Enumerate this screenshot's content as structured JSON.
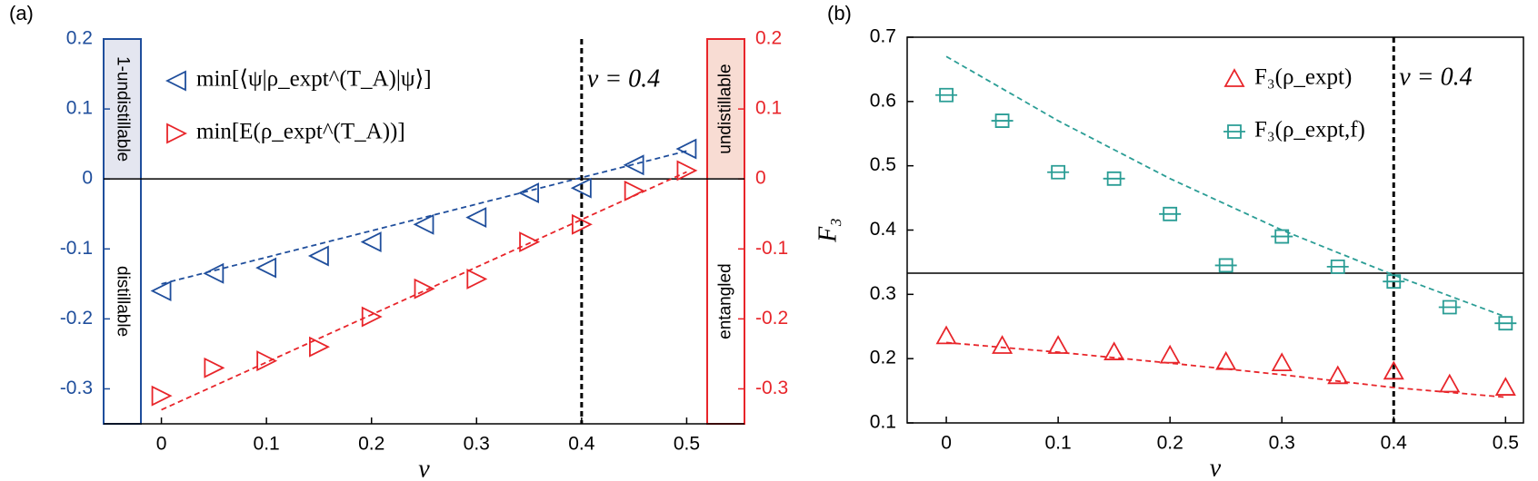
{
  "chart_data": [
    {
      "type": "scatter",
      "panel_label": "(a)",
      "x_label": "v",
      "xlim": [
        -0.055,
        0.555
      ],
      "xticks": [
        0,
        0.1,
        0.2,
        0.3,
        0.4,
        0.5
      ],
      "ylim": [
        -0.35,
        0.2
      ],
      "yticks": [
        -0.3,
        -0.2,
        -0.1,
        0,
        0.1,
        0.2
      ],
      "y_color": "#1f4e9c",
      "y2lim": [
        -0.35,
        0.2
      ],
      "y2ticks": [
        -0.3,
        -0.2,
        -0.1,
        0,
        0.1,
        0.2
      ],
      "y2_color": "#e8252a",
      "x": [
        0,
        0.05,
        0.1,
        0.15,
        0.2,
        0.25,
        0.3,
        0.35,
        0.4,
        0.45,
        0.5
      ],
      "series": [
        {
          "name": "min[⟨ψ|ρ_expt^(T_A)|ψ⟩]",
          "color": "#1f4e9c",
          "marker": "triangle-left",
          "values": [
            -0.16,
            -0.135,
            -0.127,
            -0.11,
            -0.09,
            -0.065,
            -0.055,
            -0.02,
            -0.013,
            0.02,
            0.043
          ]
        },
        {
          "name": "min[E(ρ_expt^(T_A))]",
          "color": "#e8252a",
          "marker": "triangle-right",
          "axis": "y2",
          "values": [
            -0.31,
            -0.27,
            -0.26,
            -0.24,
            -0.197,
            -0.157,
            -0.143,
            -0.09,
            -0.065,
            -0.017,
            0.012
          ]
        }
      ],
      "fit_lines": [
        {
          "color": "#1f4e9c",
          "x": [
            0,
            0.5
          ],
          "values": [
            -0.15,
            0.04
          ]
        },
        {
          "color": "#e8252a",
          "x": [
            0,
            0.5
          ],
          "values": [
            -0.33,
            0.01
          ]
        }
      ],
      "hline": 0,
      "vline": 0.4,
      "annotation": "v = 0.4",
      "legend": "upper left",
      "regions": {
        "left": [
          "1-undistillable",
          "distillable"
        ],
        "right": [
          "undistillable",
          "entangled"
        ]
      }
    },
    {
      "type": "scatter",
      "panel_label": "(b)",
      "x_label": "v",
      "y_label": "F₃",
      "xlim": [
        -0.035,
        0.516
      ],
      "xticks": [
        0,
        0.1,
        0.2,
        0.3,
        0.4,
        0.5
      ],
      "ylim": [
        0.1,
        0.7
      ],
      "yticks": [
        0.1,
        0.2,
        0.3,
        0.4,
        0.5,
        0.6,
        0.7
      ],
      "y_color": "#000000",
      "x": [
        0,
        0.05,
        0.1,
        0.15,
        0.2,
        0.25,
        0.3,
        0.35,
        0.4,
        0.45,
        0.5
      ],
      "series": [
        {
          "name": "F₃(ρ_expt)",
          "color": "#e8252a",
          "marker": "triangle-up",
          "values": [
            0.235,
            0.22,
            0.22,
            0.21,
            0.205,
            0.195,
            0.193,
            0.173,
            0.18,
            0.16,
            0.155
          ]
        },
        {
          "name": "F₃(ρ_expt,f)",
          "color": "#2a9d95",
          "marker": "square",
          "values": [
            0.61,
            0.57,
            0.49,
            0.48,
            0.425,
            0.345,
            0.39,
            0.343,
            0.32,
            0.28,
            0.255
          ]
        }
      ],
      "fit_lines": [
        {
          "color": "#e8252a",
          "x": [
            0,
            0.1,
            0.2,
            0.3,
            0.4,
            0.5
          ],
          "values": [
            0.225,
            0.21,
            0.193,
            0.175,
            0.155,
            0.14
          ]
        },
        {
          "color": "#2a9d95",
          "x": [
            0,
            0.1,
            0.2,
            0.3,
            0.4,
            0.5
          ],
          "values": [
            0.67,
            0.57,
            0.48,
            0.4,
            0.33,
            0.265
          ]
        }
      ],
      "hline": 0.333,
      "vline": 0.4,
      "annotation": "v = 0.4",
      "legend": "upper right"
    }
  ]
}
